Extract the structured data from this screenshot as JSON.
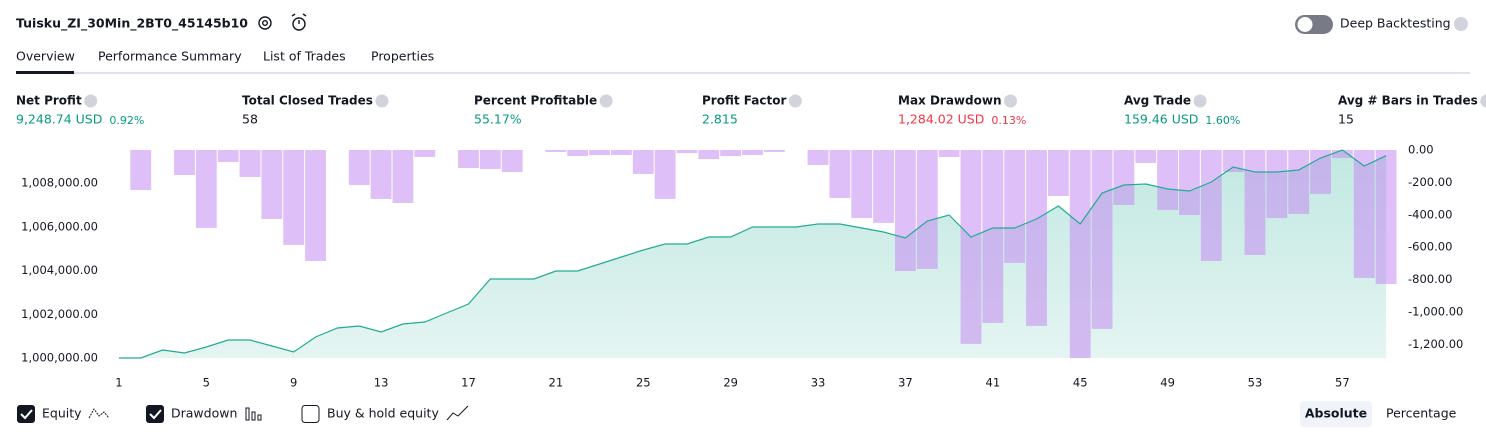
{
  "header": {
    "title": "Tuisku_ZI_30Min_2BT0_45145b10",
    "deep_backtesting": "Deep Backtesting"
  },
  "tabs": [
    "Overview",
    "Performance Summary",
    "List of Trades",
    "Properties"
  ],
  "metrics": [
    {
      "label": "Net Profit",
      "value": "9,248.74 USD",
      "change": "0.92%"
    },
    {
      "label": "Total Closed Trades",
      "value": "58"
    },
    {
      "label": "Percent Profitable",
      "value": "55.17%"
    },
    {
      "label": "Profit Factor",
      "value": "2.815"
    },
    {
      "label": "Max Drawdown",
      "value": "1,284.02 USD",
      "change": "0.13%"
    },
    {
      "label": "Avg Trade",
      "value": "159.46 USD",
      "change": "1.60%"
    },
    {
      "label": "Avg # Bars in Trades",
      "value": "15"
    }
  ],
  "chart_data": {
    "type": "equity",
    "x": [
      1,
      2,
      3,
      4,
      5,
      6,
      7,
      8,
      9,
      10,
      11,
      12,
      13,
      14,
      15,
      16,
      17,
      18,
      19,
      20,
      21,
      22,
      23,
      24,
      25,
      26,
      27,
      28,
      29,
      30,
      31,
      32,
      33,
      34,
      35,
      36,
      37,
      38,
      39,
      40,
      41,
      42,
      43,
      44,
      45,
      46,
      47,
      48,
      49,
      50,
      51,
      52,
      53,
      54,
      55,
      56,
      57,
      58,
      59
    ],
    "xlim": [
      0.5,
      59.5
    ],
    "xticks": [
      1,
      5,
      9,
      13,
      17,
      21,
      25,
      29,
      33,
      37,
      41,
      45,
      49,
      53,
      57
    ],
    "ylim": [
      1000000,
      1009509
    ],
    "yticks": [
      {
        "value": 1000000,
        "label": "1,000,000.00"
      },
      {
        "value": 1002000,
        "label": "1,002,000.00"
      },
      {
        "value": 1004000,
        "label": "1,004,000.00"
      },
      {
        "value": 1006000,
        "label": "1,006,000.00"
      },
      {
        "value": 1008000,
        "label": "1,008,000.00"
      }
    ],
    "y2lim": [
      -1284.02,
      0
    ],
    "y2ticks": [
      {
        "value": 0,
        "label": "0.00"
      },
      {
        "value": -200,
        "label": "-200.00"
      },
      {
        "value": -400,
        "label": "-400.00"
      },
      {
        "value": -600,
        "label": "-600.00"
      },
      {
        "value": -800,
        "label": "-800.00"
      },
      {
        "value": -1000,
        "label": "-1,000.00"
      },
      {
        "value": -1200,
        "label": "-1,200.00"
      }
    ],
    "grid": false,
    "series": [
      {
        "name": "Equity",
        "color": "#22ab94",
        "values": [
          1000000,
          1000000,
          1000366,
          1000229,
          1000503,
          1000823,
          1000823,
          1000549,
          1000274,
          1000960,
          1001371,
          1001463,
          1001189,
          1001554,
          1001646,
          1002057,
          1002469,
          1003611,
          1003611,
          1003611,
          1003977,
          1003977,
          1004297,
          1004617,
          1004937,
          1005211,
          1005211,
          1005531,
          1005531,
          1005988,
          1005988,
          1005988,
          1006125,
          1006125,
          1005943,
          1005760,
          1005485,
          1006263,
          1006537,
          1005531,
          1005943,
          1005943,
          1006354,
          1006948,
          1006125,
          1007542,
          1007908,
          1007954,
          1007725,
          1007634,
          1008045,
          1008731,
          1008503,
          1008503,
          1008594,
          1009143,
          1009509,
          1008777,
          1009248.74
        ]
      },
      {
        "name": "Drawdown",
        "color": "#c58af0",
        "axis": "y2",
        "values": [
          0,
          -247,
          0,
          -154,
          -481,
          -74,
          -167,
          -426,
          -586,
          -685,
          0,
          -216,
          -302,
          -327,
          -43,
          0,
          -111,
          -117,
          -136,
          0,
          -12,
          -37,
          -31,
          -31,
          -148,
          -302,
          -19,
          -56,
          -37,
          -31,
          -12,
          0,
          -93,
          -296,
          -420,
          -450,
          -747,
          -734,
          -43,
          -1197,
          -1067,
          -697,
          -1086,
          -284,
          -1284.02,
          -1104,
          -339,
          -80,
          -370,
          -401,
          -685,
          -136,
          -648,
          -420,
          -395,
          -271,
          -49,
          -790,
          -827
        ]
      }
    ]
  },
  "footer": {
    "buy_hold": "Buy & hold equity",
    "absolute": "Absolute",
    "percentage": "Percentage"
  }
}
